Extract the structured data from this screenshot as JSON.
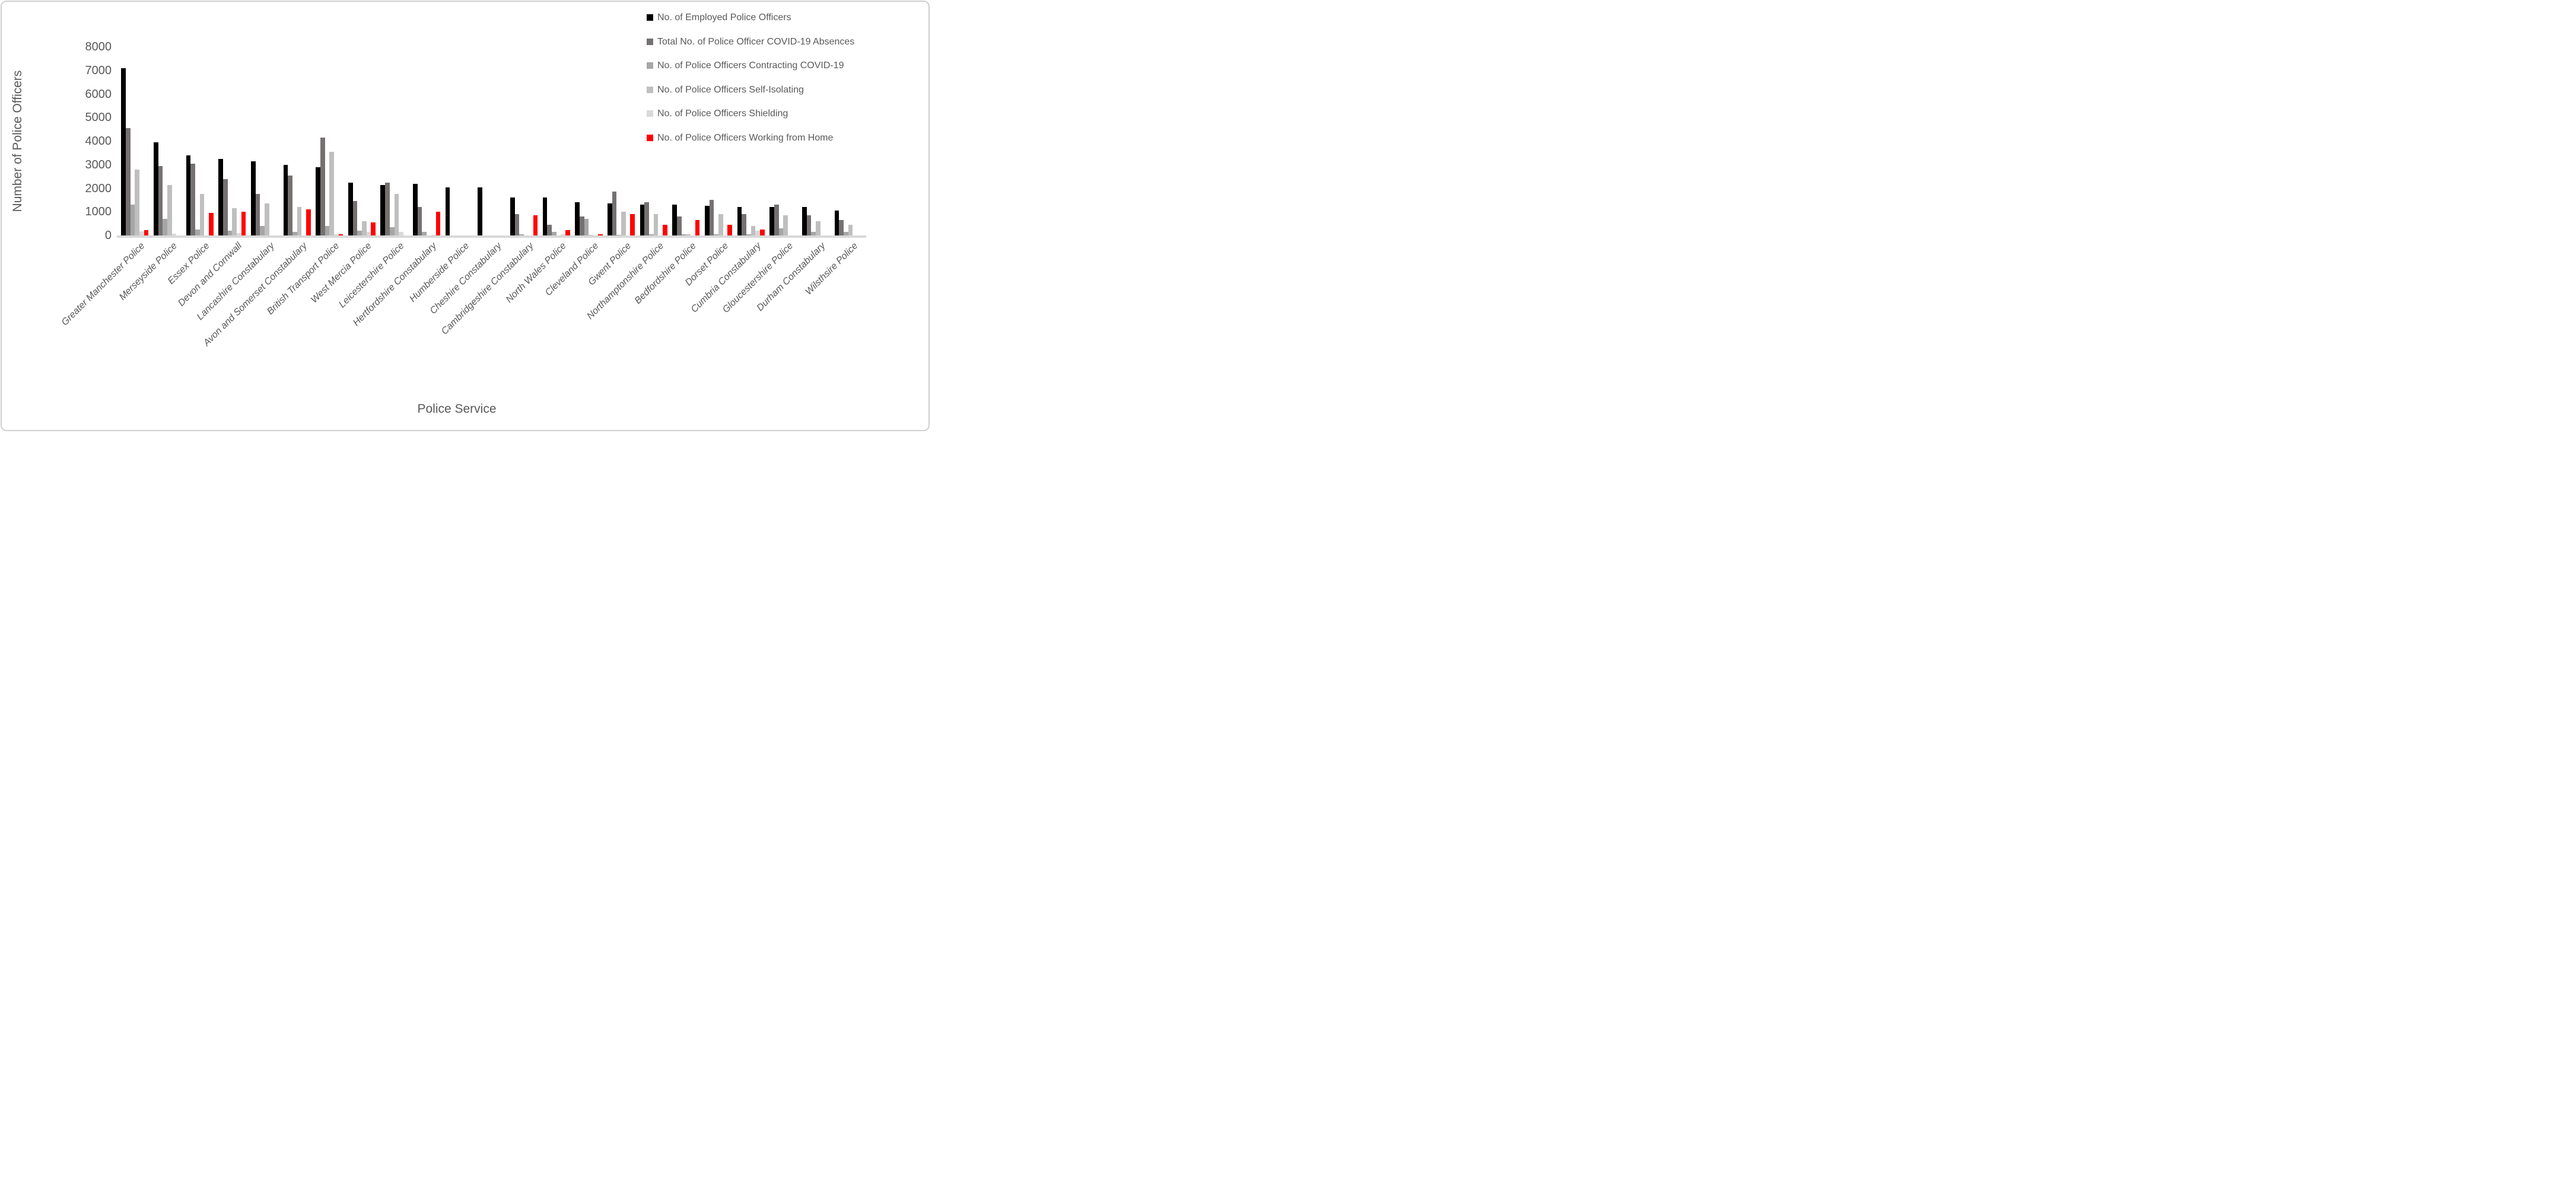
{
  "chart_data": {
    "type": "bar",
    "title": "",
    "xlabel": "Police Service",
    "ylabel": "Number of Police Officers",
    "ylim": [
      0,
      8000
    ],
    "yticks": [
      0,
      1000,
      2000,
      3000,
      4000,
      5000,
      6000,
      7000,
      8000
    ],
    "grid": false,
    "legend_position": "top-right",
    "categories": [
      "Greater Manchester Police",
      "Merseyside Police",
      "Essex Police",
      "Devon and Cornwall",
      "Lancashire Constabulary",
      "Avon and Somerset Constabulary",
      "British Transport Police",
      "West Mercia Police",
      "Leicestershire Police",
      "Hertfordshire Constabulary",
      "Humberside Police",
      "Cheshire  Constabulary",
      "Cambridgeshire Constabulary",
      "North Wales Police",
      "Cleveland Police",
      "Gwent Police",
      "Northamptonshire Police",
      "Bedfordshire Police",
      "Dorset Police",
      "Cumbria Constabulary",
      "Gloucestershire Police",
      "Durham Constabulary",
      "Wilsthsire Police"
    ],
    "series": [
      {
        "name": "No. of Employed Police Officers",
        "color": "#000000",
        "values": [
          7100,
          3950,
          3400,
          3250,
          3150,
          3000,
          2900,
          2250,
          2150,
          2200,
          2050,
          2050,
          1600,
          1600,
          1400,
          1350,
          1300,
          1300,
          1250,
          1200,
          1200,
          1200,
          1050
        ]
      },
      {
        "name": "Total No. of Police Officer COVID-19 Absences",
        "color": "#767171",
        "values": [
          4550,
          2950,
          3050,
          2400,
          1750,
          2550,
          4150,
          1450,
          2250,
          1200,
          0,
          0,
          900,
          450,
          800,
          1850,
          1400,
          800,
          1500,
          900,
          1300,
          850,
          650
        ]
      },
      {
        "name": "No. of Police Officers Contracting COVID-19",
        "color": "#a6a6a6",
        "values": [
          1300,
          700,
          250,
          200,
          400,
          150,
          400,
          200,
          350,
          150,
          0,
          0,
          50,
          150,
          700,
          30,
          50,
          50,
          50,
          50,
          300,
          150,
          150
        ]
      },
      {
        "name": "No. of Police Officers Self-Isolating",
        "color": "#bfbfbf",
        "values": [
          2800,
          2150,
          1750,
          1150,
          1350,
          1200,
          3550,
          600,
          1750,
          0,
          0,
          0,
          0,
          0,
          30,
          1000,
          900,
          50,
          900,
          400,
          850,
          600,
          450
        ]
      },
      {
        "name": "No. of Police Officers Shielding",
        "color": "#d9d9d9",
        "values": [
          170,
          70,
          0,
          100,
          0,
          0,
          50,
          150,
          150,
          30,
          0,
          0,
          0,
          50,
          0,
          0,
          0,
          0,
          0,
          200,
          0,
          0,
          0
        ]
      },
      {
        "name": "No. of Police Officers Working from Home",
        "color": "#ff0000",
        "values": [
          220,
          0,
          950,
          1000,
          0,
          1100,
          60,
          550,
          0,
          1000,
          0,
          0,
          850,
          220,
          50,
          900,
          450,
          650,
          450,
          250,
          0,
          0,
          0
        ]
      }
    ]
  }
}
